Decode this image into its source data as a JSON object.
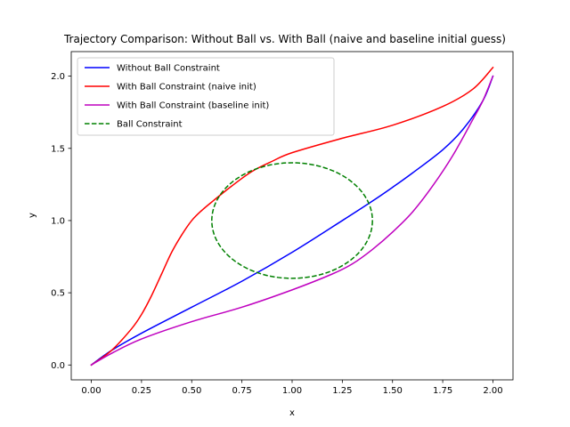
{
  "chart_data": {
    "type": "line",
    "title": "Trajectory Comparison: Without Ball vs. With Ball (naive and baseline initial guess)",
    "xlabel": "x",
    "ylabel": "y",
    "xlim": [
      -0.0999,
      2.1
    ],
    "ylim": [
      -0.103,
      2.17
    ],
    "xticks": [
      0.0,
      0.25,
      0.5,
      0.75,
      1.0,
      1.25,
      1.5,
      1.75,
      2.0
    ],
    "xtick_labels": [
      "0.00",
      "0.25",
      "0.50",
      "0.75",
      "1.00",
      "1.25",
      "1.50",
      "1.75",
      "2.00"
    ],
    "yticks": [
      0.0,
      0.5,
      1.0,
      1.5,
      2.0
    ],
    "ytick_labels": [
      "0.0",
      "0.5",
      "1.0",
      "1.5",
      "2.0"
    ],
    "grid": false,
    "legend": "top-left",
    "series": [
      {
        "name": "Without Ball Constraint",
        "color": "#0000ff",
        "style": "solid",
        "x": [
          0.0,
          0.1,
          0.25,
          0.5,
          0.75,
          1.0,
          1.25,
          1.4,
          1.5,
          1.6,
          1.75,
          1.85,
          1.95,
          2.0
        ],
        "y": [
          0.0,
          0.1,
          0.22,
          0.4,
          0.58,
          0.78,
          1.0,
          1.135,
          1.23,
          1.33,
          1.49,
          1.63,
          1.83,
          2.0
        ]
      },
      {
        "name": "With Ball Constraint (naive init)",
        "color": "#ff0000",
        "style": "solid",
        "x": [
          0.0,
          0.1,
          0.2,
          0.25,
          0.3,
          0.35,
          0.4,
          0.45,
          0.5,
          0.55,
          0.61,
          0.7,
          0.8,
          0.9,
          1.0,
          1.25,
          1.5,
          1.75,
          1.9,
          2.0
        ],
        "y": [
          0.0,
          0.1,
          0.25,
          0.35,
          0.48,
          0.63,
          0.78,
          0.9,
          1.0,
          1.07,
          1.14,
          1.24,
          1.34,
          1.41,
          1.47,
          1.57,
          1.66,
          1.79,
          1.91,
          2.06
        ]
      },
      {
        "name": "With Ball Constraint (baseline init)",
        "color": "#bf00bf",
        "style": "solid",
        "x": [
          0.0,
          0.1,
          0.25,
          0.5,
          0.75,
          1.0,
          1.2,
          1.3,
          1.4,
          1.5,
          1.6,
          1.7,
          1.8,
          1.9,
          1.95,
          2.0
        ],
        "y": [
          0.0,
          0.08,
          0.18,
          0.3,
          0.4,
          0.52,
          0.63,
          0.7,
          0.8,
          0.92,
          1.06,
          1.24,
          1.45,
          1.7,
          1.83,
          2.0
        ]
      },
      {
        "name": "Ball Constraint",
        "color": "#008000",
        "style": "dashed",
        "shape": "circle",
        "center": [
          1.0,
          1.0
        ],
        "radius": 0.4
      }
    ]
  }
}
